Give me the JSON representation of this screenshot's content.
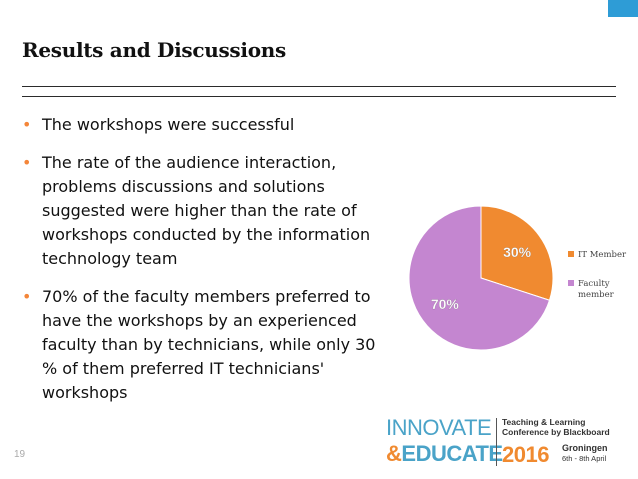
{
  "slide": {
    "title": "Results and Discussions",
    "bullets": [
      "The workshops were successful",
      "The rate of the audience interaction, problems discussions and solutions suggested were higher than the rate of workshops conducted by the information technology team",
      "70% of the faculty members preferred to have the workshops by an experienced faculty than by technicians, while only 30 % of them preferred IT technicians' workshops"
    ],
    "page_number": "19",
    "bullet_color": "#f4863a",
    "accent_color": "#2e9cd6"
  },
  "logo": {
    "innovate": "INNOVATE",
    "amp": "&",
    "educate": "EDUCATE",
    "tagline_1": "Teaching & Learning",
    "tagline_2": "Conference by Blackboard",
    "year": "2016",
    "city": "Groningen",
    "dates": "6th - 8th April"
  },
  "chart_data": {
    "type": "pie",
    "slices": [
      {
        "label": "IT Member",
        "value": 30,
        "data_label": "30%",
        "color": "#f08a30"
      },
      {
        "label": "Faculty member",
        "value": 70,
        "data_label": "70%",
        "color": "#c486d0"
      }
    ],
    "legend_position": "right"
  }
}
